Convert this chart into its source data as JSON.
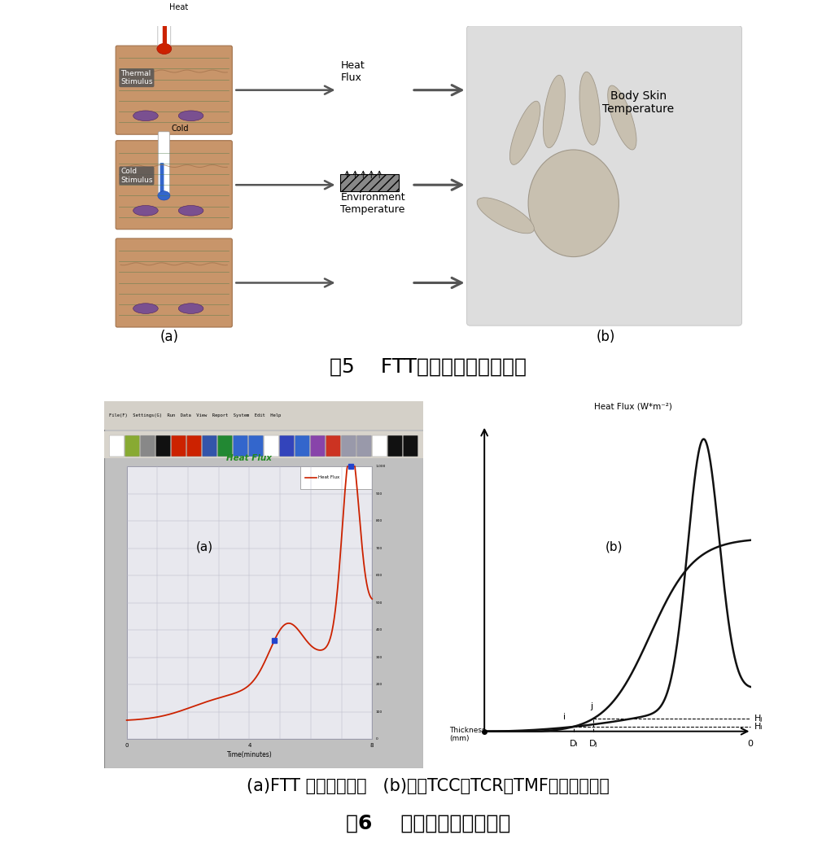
{
  "fig_title5": "图5    FTT热流测试原理示意图",
  "fig_title6": "图6    热流模块指数计算图",
  "caption_bottom": "(a)FTT 典型测量曲线   (b)指数TCC、TCR和TMF的计算示意图",
  "bg_color": "#ffffff",
  "text_color": "#000000",
  "title_fontsize": 18,
  "caption_fontsize": 15,
  "gray_bg": "#e8e8e8",
  "skin_color": "#c8956a",
  "skin_dark": "#a0704a",
  "green_line": "#4a7a4a",
  "purple_cell": "#7a5090",
  "red_therm": "#cc2200",
  "blue_therm": "#3366cc",
  "arrow_color": "#555555",
  "hatch_color": "#888888",
  "plot_red": "#cc2200",
  "plot_blue": "#2244cc",
  "window_bg": "#c8c8c8",
  "window_menu": "#d8d8d8",
  "plot_area_bg": "#e8e8ee",
  "grid_color": "#b8b8c8",
  "curve_black": "#111111",
  "di_label": "Dᵢ",
  "dj_label": "Dⱼ",
  "hi_label": "Hᵢ",
  "hj_label": "Hⱼ",
  "heat_flux_label": "Heat Flux (W*m⁻²)",
  "thickness_label": "Thickness\n(mm)",
  "zero_label": "0",
  "cold_text": "Cold",
  "cold_stim_text": "Cold\nStimulus",
  "heat_text": "Heat",
  "thermal_stim_text": "Thermal\nStimulus",
  "heat_flux_text": "Heat\nFlux",
  "env_temp_text": "Environment\nTemperature",
  "body_skin_text": "Body Skin\nTemperature",
  "label_a": "(a)",
  "label_b": "(b)"
}
